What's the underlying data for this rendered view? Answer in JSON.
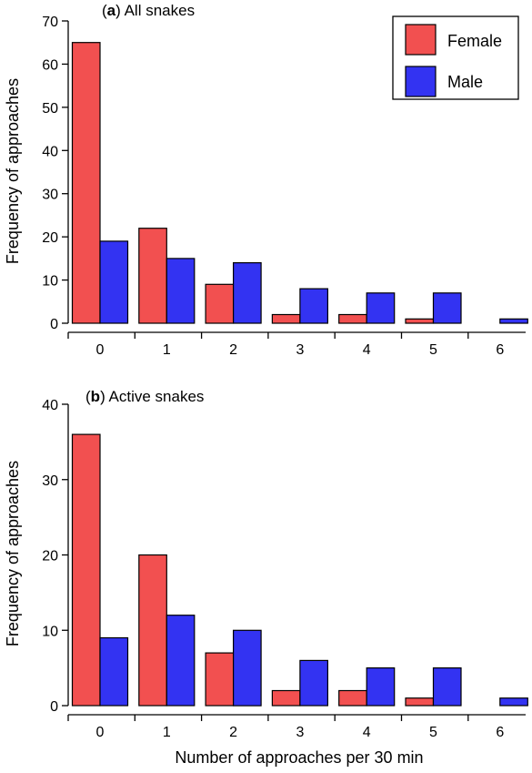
{
  "colors": {
    "female": "#f25050",
    "male": "#3333f2",
    "axis": "#000000"
  },
  "legend": {
    "female_label": "Female",
    "male_label": "Male",
    "placement": "top-right"
  },
  "shared_xlabel": "Number of approaches per 30 min",
  "chart_data": [
    {
      "type": "bar",
      "panel_letter": "a",
      "title": "All snakes",
      "ylabel": "Frequency of approaches",
      "xlabel": "",
      "categories": [
        "0",
        "1",
        "2",
        "3",
        "4",
        "5",
        "6"
      ],
      "ylim": [
        0,
        70
      ],
      "yticks": [
        0,
        10,
        20,
        30,
        40,
        50,
        60,
        70
      ],
      "series": [
        {
          "name": "Female",
          "values": [
            65,
            22,
            9,
            2,
            2,
            1,
            0
          ]
        },
        {
          "name": "Male",
          "values": [
            19,
            15,
            14,
            8,
            7,
            7,
            1
          ]
        }
      ]
    },
    {
      "type": "bar",
      "panel_letter": "b",
      "title": "Active snakes",
      "ylabel": "Frequency of approaches",
      "xlabel": "Number of approaches per 30 min",
      "categories": [
        "0",
        "1",
        "2",
        "3",
        "4",
        "5",
        "6"
      ],
      "ylim": [
        0,
        40
      ],
      "yticks": [
        0,
        10,
        20,
        30,
        40
      ],
      "series": [
        {
          "name": "Female",
          "values": [
            36,
            20,
            7,
            2,
            2,
            1,
            0
          ]
        },
        {
          "name": "Male",
          "values": [
            9,
            12,
            10,
            6,
            5,
            5,
            1
          ]
        }
      ]
    }
  ]
}
